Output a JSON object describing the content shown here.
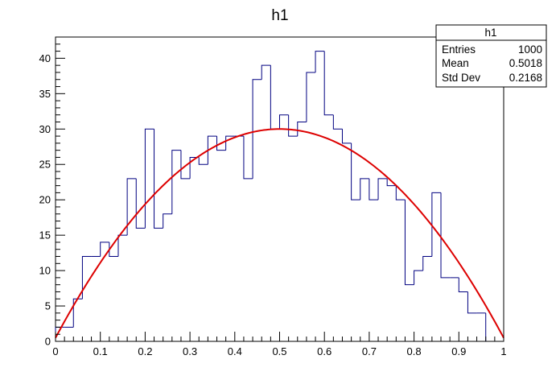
{
  "chart_data": {
    "type": "bar",
    "title": "h1",
    "xlabel": "",
    "ylabel": "",
    "xlim": [
      0,
      1
    ],
    "ylim": [
      0,
      43
    ],
    "bin_width": 0.02,
    "bin_edges_start": 0.0,
    "values": [
      2,
      2,
      6,
      12,
      12,
      14,
      12,
      15,
      23,
      16,
      30,
      16,
      18,
      27,
      23,
      26,
      25,
      29,
      27,
      29,
      29,
      23,
      37,
      39,
      30,
      32,
      29,
      31,
      38,
      41,
      32,
      30,
      28,
      20,
      23,
      20,
      23,
      22,
      20,
      8,
      10,
      12,
      21,
      9,
      9,
      7,
      4,
      4
    ],
    "x_ticks": [
      "0",
      "0.1",
      "0.2",
      "0.3",
      "0.4",
      "0.5",
      "0.6",
      "0.7",
      "0.8",
      "0.9",
      "1"
    ],
    "y_ticks": [
      "0",
      "5",
      "10",
      "15",
      "20",
      "25",
      "30",
      "35",
      "40"
    ],
    "fit": {
      "type": "parabola",
      "peak_x": 0.5,
      "peak_y": 30.0,
      "y_at_edges": 0.5
    },
    "stats_box": {
      "title": "h1",
      "rows": [
        {
          "label": "Entries",
          "value": "1000"
        },
        {
          "label": "Mean",
          "value": "0.5018"
        },
        {
          "label": "Std Dev",
          "value": "0.2168"
        }
      ]
    },
    "colors": {
      "histogram": "#000080",
      "fit": "#dd0000",
      "frame": "#000000"
    },
    "grid": false
  }
}
